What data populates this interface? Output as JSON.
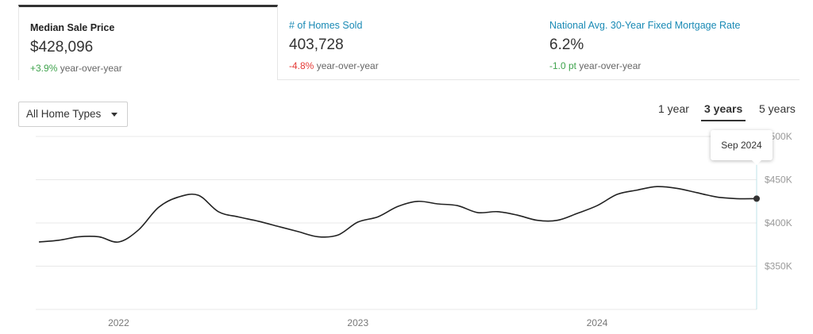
{
  "metrics": [
    {
      "label": "Median Sale Price",
      "value": "$428,096",
      "change": "+3.9%",
      "change_suffix": "year-over-year"
    },
    {
      "label": "# of Homes Sold",
      "value": "403,728",
      "change": "-4.8%",
      "change_suffix": "year-over-year"
    },
    {
      "label": "National Avg. 30-Year Fixed Mortgage Rate",
      "value": "6.2%",
      "change": "-1.0 pt",
      "change_suffix": "year-over-year"
    }
  ],
  "filter": {
    "selected": "All Home Types"
  },
  "ranges": [
    "1 year",
    "3 years",
    "5 years"
  ],
  "active_range": "3 years",
  "tooltip": {
    "label": "Sep 2024"
  },
  "colors": {
    "positive": "#3fa34d",
    "negative": "#e53935",
    "link": "#1a8ab5",
    "line": "#222222"
  },
  "chart_data": {
    "type": "line",
    "x": [
      "2021-09",
      "2021-10",
      "2021-11",
      "2021-12",
      "2022-01",
      "2022-02",
      "2022-03",
      "2022-04",
      "2022-05",
      "2022-06",
      "2022-07",
      "2022-08",
      "2022-09",
      "2022-10",
      "2022-11",
      "2022-12",
      "2023-01",
      "2023-02",
      "2023-03",
      "2023-04",
      "2023-05",
      "2023-06",
      "2023-07",
      "2023-08",
      "2023-09",
      "2023-10",
      "2023-11",
      "2023-12",
      "2024-01",
      "2024-02",
      "2024-03",
      "2024-04",
      "2024-05",
      "2024-06",
      "2024-07",
      "2024-08",
      "2024-09"
    ],
    "series": [
      {
        "values": [
          378000,
          380000,
          384000,
          384000,
          378000,
          392000,
          418000,
          430000,
          432000,
          413000,
          407000,
          402000,
          396000,
          390000,
          384000,
          386000,
          401000,
          407000,
          419000,
          425000,
          422000,
          420000,
          412000,
          413000,
          409000,
          403000,
          403000,
          411000,
          420000,
          433000,
          438000,
          442000,
          440000,
          435000,
          430000,
          428096,
          428096
        ]
      }
    ],
    "x_ticks": [
      "2022",
      "2023",
      "2024"
    ],
    "y_ticks": [
      350000,
      400000,
      450000,
      500000
    ],
    "y_tick_labels": [
      "$350K",
      "$400K",
      "$450K",
      "$500K"
    ],
    "ylim": [
      300000,
      500000
    ],
    "grid": "horizontal"
  }
}
